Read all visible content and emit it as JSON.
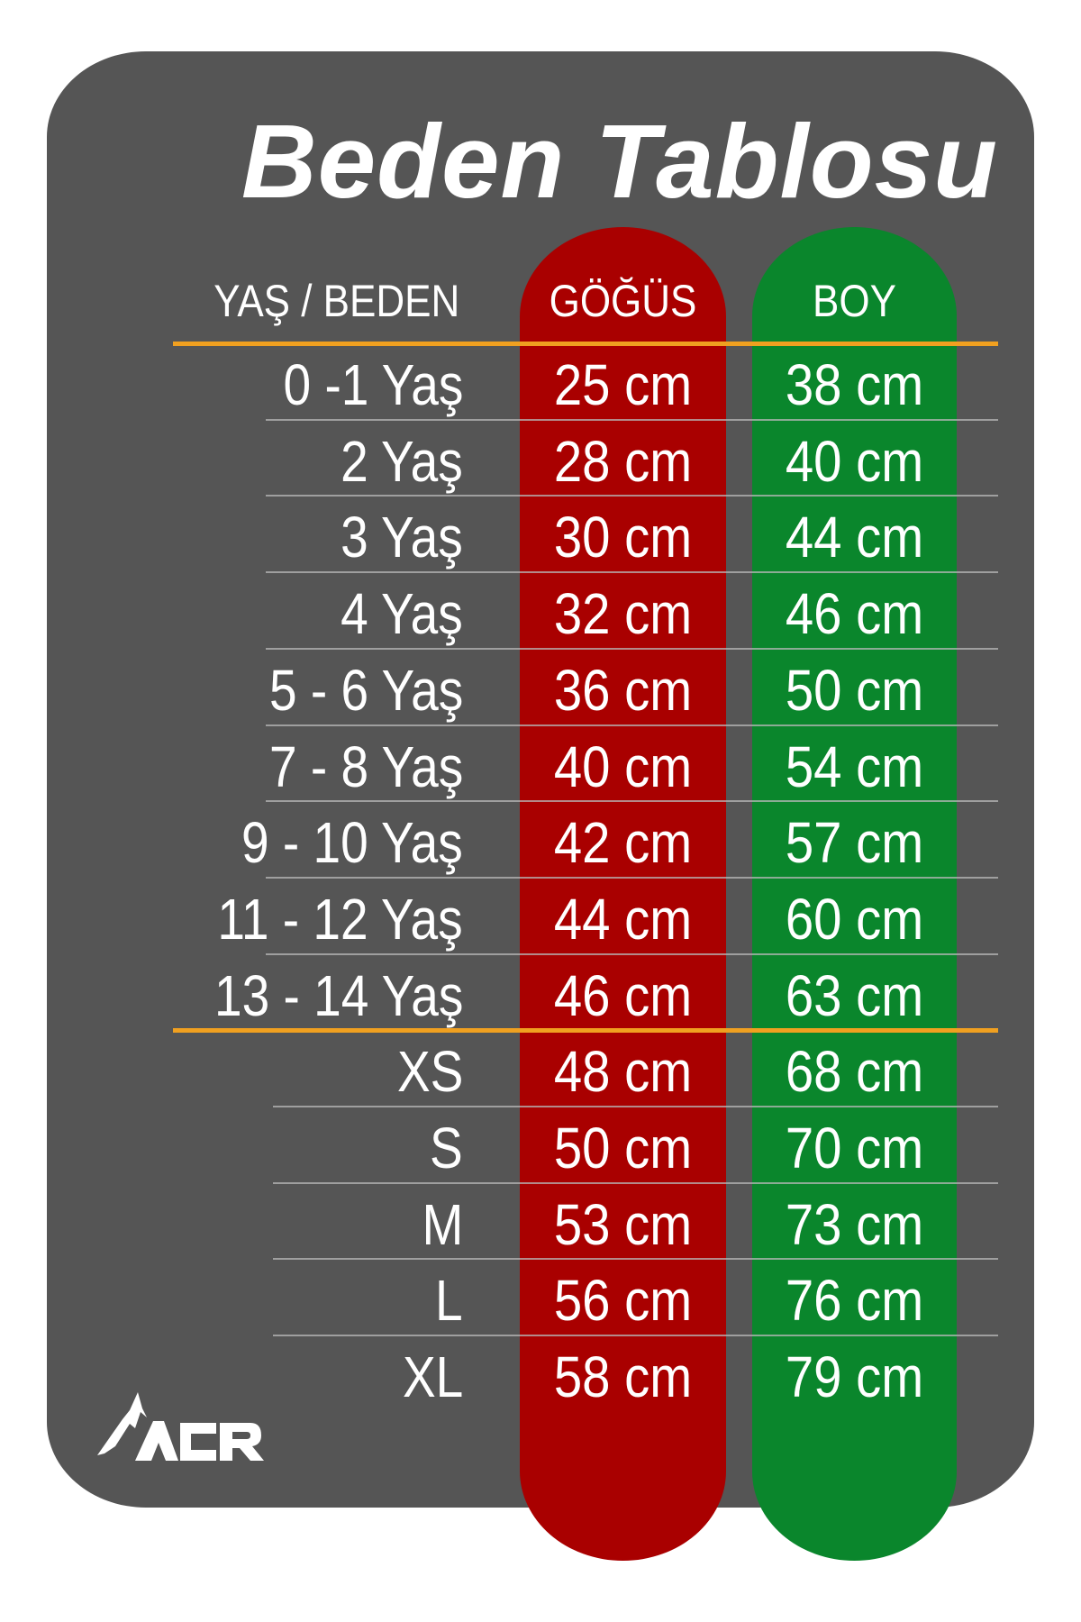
{
  "title": "Beden Tablosu",
  "headers": {
    "age": "YAŞ / BEDEN",
    "chest": "GÖĞÜS",
    "height": "BOY"
  },
  "rows": [
    {
      "age": "0 -1 Yaş",
      "chest": "25 cm",
      "height": "38 cm"
    },
    {
      "age": "2 Yaş",
      "chest": "28 cm",
      "height": "40 cm"
    },
    {
      "age": "3 Yaş",
      "chest": "30 cm",
      "height": "44 cm"
    },
    {
      "age": "4 Yaş",
      "chest": "32 cm",
      "height": "46 cm"
    },
    {
      "age": "5 - 6 Yaş",
      "chest": "36 cm",
      "height": "50 cm"
    },
    {
      "age": "7 - 8 Yaş",
      "chest": "40 cm",
      "height": "54 cm"
    },
    {
      "age": "9 - 10 Yaş",
      "chest": "42 cm",
      "height": "57 cm"
    },
    {
      "age": "11 - 12 Yaş",
      "chest": "44 cm",
      "height": "60 cm"
    },
    {
      "age": "13 - 14 Yaş",
      "chest": "46 cm",
      "height": "63 cm"
    },
    {
      "age": "XS",
      "chest": "48 cm",
      "height": "68 cm"
    },
    {
      "age": "S",
      "chest": "50 cm",
      "height": "70 cm"
    },
    {
      "age": "M",
      "chest": "53 cm",
      "height": "73 cm"
    },
    {
      "age": "L",
      "chest": "56 cm",
      "height": "76 cm"
    },
    {
      "age": "XL",
      "chest": "58 cm",
      "height": "79 cm"
    }
  ],
  "logo": {
    "text": "ACR",
    "icon": "mountain-icon"
  },
  "colors": {
    "panel": "#555555",
    "chest": "#a90000",
    "height": "#0a862c",
    "accent": "#f0a020",
    "text": "#ffffff"
  }
}
